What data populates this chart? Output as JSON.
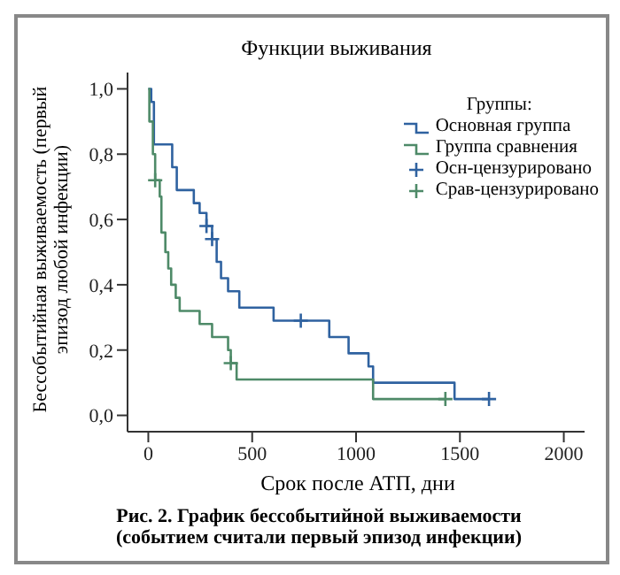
{
  "chart_data": {
    "type": "step",
    "title": "Функции выживания",
    "xlabel": "Срок после АТП, дни",
    "ylabel": "Бессобытийная выживаемость (первый эпизод любой инфекции)",
    "legend_title": "Группы:",
    "legend": "top right",
    "grid": false,
    "xlim": [
      -100,
      2100
    ],
    "xticks": [
      0,
      500,
      1000,
      1500,
      2000
    ],
    "ylim": [
      -0.05,
      1.05
    ],
    "yticks": [
      {
        "value": 0,
        "label": "0,0"
      },
      {
        "value": 0.2,
        "label": "0,2"
      },
      {
        "value": 0.4,
        "label": "0,4"
      },
      {
        "value": 0.6,
        "label": "0,6"
      },
      {
        "value": 0.8,
        "label": "0,8"
      },
      {
        "value": 1,
        "label": "1,0"
      }
    ],
    "series": [
      {
        "name": "Основная группа",
        "color": "#2f62a0",
        "marker": "none",
        "x": [
          0,
          14,
          27,
          115,
          137,
          219,
          247,
          280,
          307,
          329,
          350,
          384,
          438,
          603,
          871,
          964,
          1060,
          1082,
          1474,
          1640
        ],
        "values": [
          1,
          0.96,
          0.83,
          0.76,
          0.69,
          0.65,
          0.62,
          0.58,
          0.54,
          0.47,
          0.42,
          0.38,
          0.33,
          0.29,
          0.24,
          0.19,
          0.15,
          0.1,
          0.05,
          0.05
        ]
      },
      {
        "name": "Группа сравнения",
        "color": "#4e8a68",
        "marker": "none",
        "x": [
          0,
          5,
          22,
          33,
          55,
          63,
          82,
          96,
          110,
          132,
          151,
          247,
          307,
          384,
          397,
          425,
          1082,
          1430
        ],
        "values": [
          1,
          0.9,
          0.8,
          0.72,
          0.67,
          0.56,
          0.5,
          0.45,
          0.4,
          0.36,
          0.32,
          0.28,
          0.24,
          0.2,
          0.16,
          0.11,
          0.05,
          0.05
        ]
      },
      {
        "name": "Осн-цензурировано",
        "type": "scatter",
        "color": "#2f62a0",
        "marker": "cross",
        "x": [
          280,
          307,
          734,
          1640
        ],
        "values": [
          0.58,
          0.54,
          0.29,
          0.05
        ]
      },
      {
        "name": "Срав-цензурировано",
        "type": "scatter",
        "color": "#4e8a68",
        "marker": "cross",
        "x": [
          33,
          397,
          1430
        ],
        "values": [
          0.72,
          0.16,
          0.05
        ]
      }
    ],
    "annotations": [
      "Рис. 2. График бессобытийной выживаемости (событием считали первый эпизод инфекции)"
    ]
  }
}
